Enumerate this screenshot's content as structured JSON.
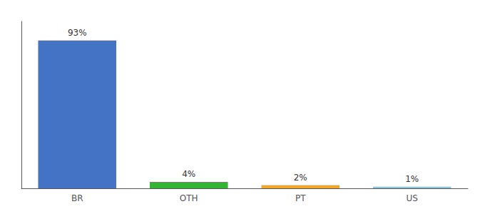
{
  "chart_data": {
    "type": "bar",
    "categories": [
      "BR",
      "OTH",
      "PT",
      "US"
    ],
    "values": [
      93,
      4,
      2,
      1
    ],
    "value_labels": [
      "93%",
      "4%",
      "2%",
      "1%"
    ],
    "colors": [
      "#4472c4",
      "#33b533",
      "#f5a623",
      "#7ec8e3"
    ],
    "ylim": [
      0,
      105
    ],
    "data_labels": true,
    "tick_labels": "x",
    "grid": false
  }
}
